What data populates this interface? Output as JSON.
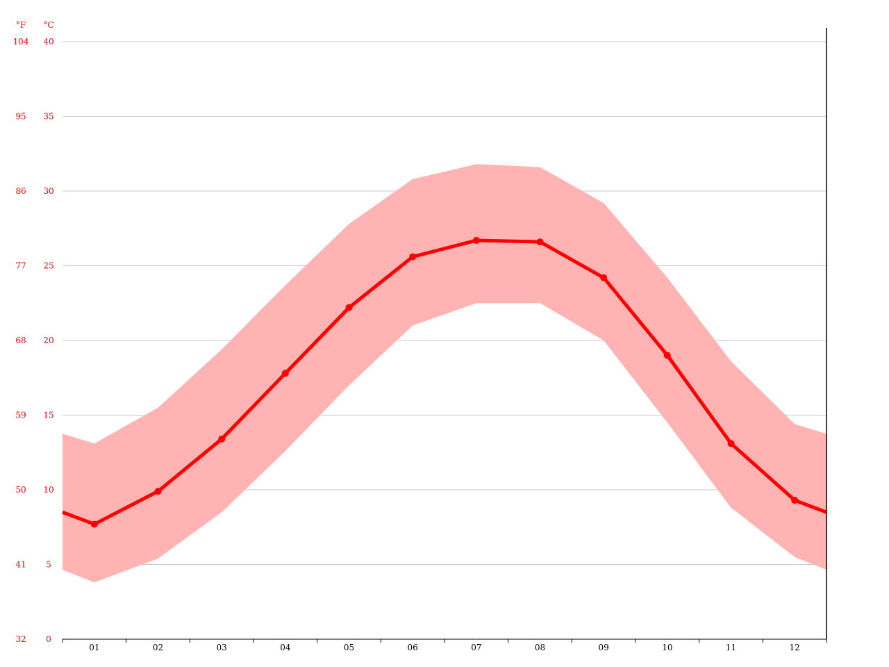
{
  "chart_data": {
    "type": "line",
    "categories": [
      "01",
      "02",
      "03",
      "04",
      "05",
      "06",
      "07",
      "08",
      "09",
      "10",
      "11",
      "12"
    ],
    "series": [
      {
        "values": [
          7.7,
          9.9,
          13.4,
          17.8,
          22.2,
          25.6,
          26.7,
          26.6,
          24.2,
          19.0,
          13.1,
          9.3
        ]
      }
    ],
    "band": {
      "upper": [
        13.1,
        15.5,
        19.4,
        23.7,
        27.8,
        30.8,
        31.8,
        31.6,
        29.2,
        24.2,
        18.6,
        14.4
      ],
      "lower": [
        3.8,
        5.4,
        8.5,
        12.6,
        17.0,
        21.0,
        22.5,
        22.5,
        20.0,
        14.5,
        8.8,
        5.5
      ]
    },
    "y_axis_celsius": {
      "unit": "°C",
      "ticks": [
        "0",
        "5",
        "10",
        "15",
        "20",
        "25",
        "30",
        "35",
        "40"
      ],
      "range": [
        0,
        40
      ]
    },
    "y_axis_fahrenheit": {
      "unit": "°F",
      "ticks": [
        "32",
        "41",
        "50",
        "59",
        "68",
        "77",
        "86",
        "95",
        "104"
      ]
    },
    "grid": true,
    "colors": {
      "line": "#ff0000",
      "band": "#ffb3b3",
      "grid": "#c8c8c8",
      "axis_text": "#ff0000"
    }
  }
}
